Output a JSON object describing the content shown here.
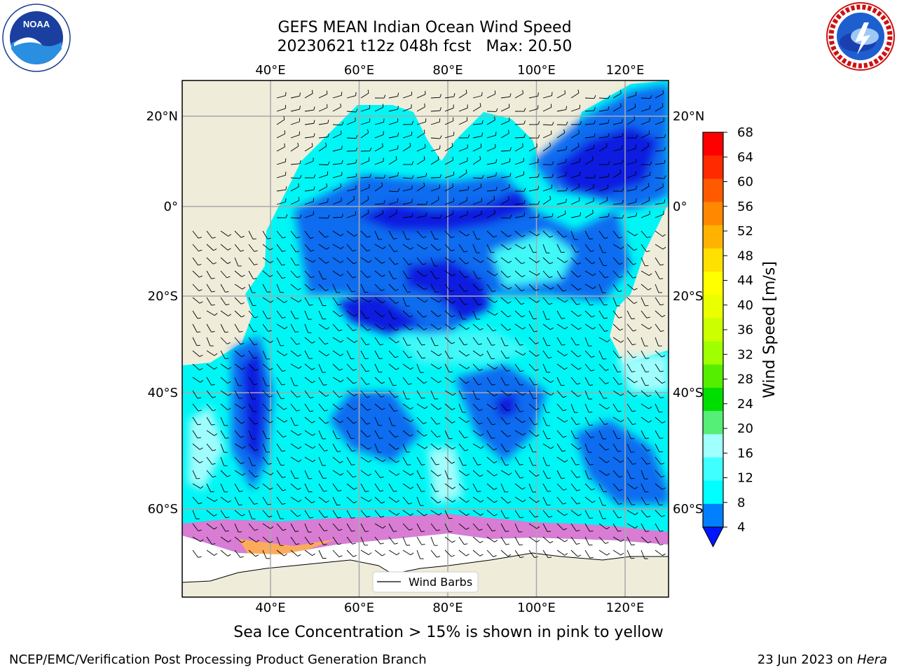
{
  "header": {
    "title": "GEFS MEAN Indian Ocean Wind Speed",
    "subtitle_date": "20230621 t12z 048h fcst",
    "subtitle_max": "Max: 20.50"
  },
  "logos": {
    "left": {
      "name": "NOAA",
      "text": "NOAA"
    },
    "right": {
      "name": "National Weather Service"
    }
  },
  "map": {
    "lon_ticks": [
      "40°E",
      "60°E",
      "80°E",
      "100°E",
      "120°E"
    ],
    "lat_ticks": [
      "20°N",
      "0°",
      "20°S",
      "40°S",
      "60°S"
    ],
    "lon_values": [
      40,
      60,
      80,
      100,
      120
    ],
    "lat_values": [
      20,
      0,
      -20,
      -40,
      -60
    ],
    "legend_label": "Wind Barbs",
    "colors": {
      "land": "#efedda",
      "sea_ice": "#ffffff",
      "speed_4_8": "#0a6cf0",
      "speed_lt4": "#0a1fe0",
      "speed_8_12": "#00f5f5",
      "speed_12_16": "#3ff8f8",
      "speed_16_20": "#a0fdfd"
    }
  },
  "colorbar": {
    "label": "Wind Speed [m/s]",
    "ticks": [
      "68",
      "64",
      "60",
      "56",
      "52",
      "48",
      "44",
      "40",
      "36",
      "32",
      "28",
      "24",
      "20",
      "16",
      "12",
      "8",
      "4"
    ],
    "colors": [
      "#ff0000",
      "#ff2a00",
      "#ff5a00",
      "#ff8800",
      "#ffb300",
      "#ffe000",
      "#ffff00",
      "#eaff00",
      "#ccff00",
      "#a0ff00",
      "#55ee00",
      "#00dd00",
      "#55ee77",
      "#a0ffff",
      "#40ffff",
      "#00ffff",
      "#0080ff"
    ],
    "extend_color": "#0015ff"
  },
  "caption": "Sea Ice Concentration > 15% is shown in pink to yellow",
  "footer": {
    "left": "NCEP/EMC/Verification Post Processing Product Generation Branch",
    "date": "23 Jun 2023 on ",
    "host": "Hera"
  }
}
